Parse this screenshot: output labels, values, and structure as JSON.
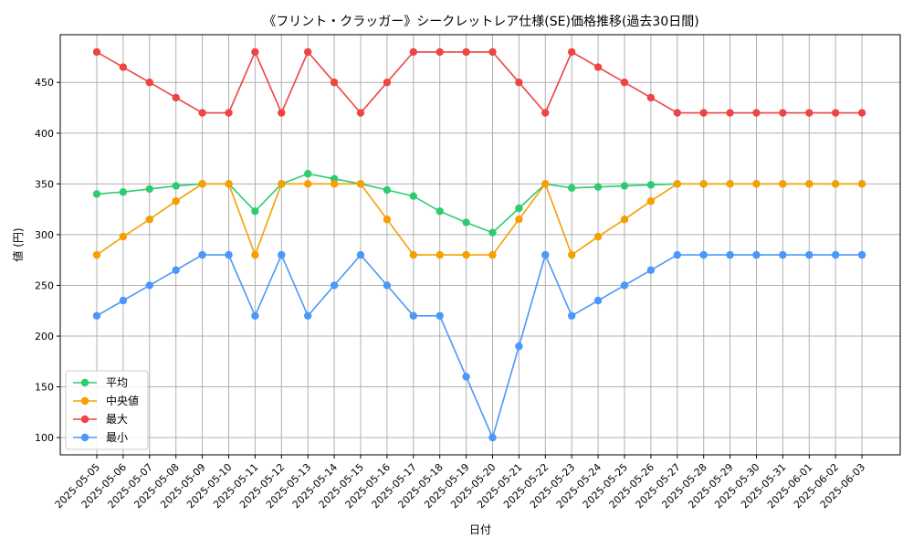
{
  "chart_data": {
    "type": "line",
    "title": "《フリント・クラッガー》シークレットレア仕様(SE)価格推移(過去30日間)",
    "xlabel": "日付",
    "ylabel": "値 (円)",
    "ylim": [
      83,
      497
    ],
    "yticks": [
      100,
      150,
      200,
      250,
      300,
      350,
      400,
      450
    ],
    "grid": true,
    "legend": "lower-left",
    "categories": [
      "2025-05-05",
      "2025-05-06",
      "2025-05-07",
      "2025-05-08",
      "2025-05-09",
      "2025-05-10",
      "2025-05-11",
      "2025-05-12",
      "2025-05-13",
      "2025-05-14",
      "2025-05-15",
      "2025-05-16",
      "2025-05-17",
      "2025-05-18",
      "2025-05-19",
      "2025-05-20",
      "2025-05-21",
      "2025-05-22",
      "2025-05-23",
      "2025-05-24",
      "2025-05-25",
      "2025-05-26",
      "2025-05-27",
      "2025-05-28",
      "2025-05-29",
      "2025-05-30",
      "2025-05-31",
      "2025-06-01",
      "2025-06-02",
      "2025-06-03"
    ],
    "series": [
      {
        "name": "平均",
        "color": "#2ecc71",
        "values": [
          340,
          342,
          345,
          348,
          350,
          350,
          323,
          350,
          360,
          355,
          350,
          344,
          338,
          323,
          312,
          302,
          326,
          350,
          346,
          347,
          348,
          349,
          350,
          350,
          350,
          350,
          350,
          350,
          350,
          350
        ]
      },
      {
        "name": "中央値",
        "color": "#f5a000",
        "values": [
          280,
          298,
          315,
          333,
          350,
          350,
          280,
          350,
          350,
          350,
          350,
          315,
          280,
          280,
          280,
          280,
          315,
          350,
          280,
          298,
          315,
          333,
          350,
          350,
          350,
          350,
          350,
          350,
          350,
          350
        ]
      },
      {
        "name": "最大",
        "color": "#ee4444",
        "values": [
          480,
          465,
          450,
          435,
          420,
          420,
          480,
          420,
          480,
          450,
          420,
          450,
          480,
          480,
          480,
          480,
          450,
          420,
          480,
          465,
          450,
          435,
          420,
          420,
          420,
          420,
          420,
          420,
          420,
          420
        ]
      },
      {
        "name": "最小",
        "color": "#4a98f7",
        "values": [
          220,
          235,
          250,
          265,
          280,
          280,
          220,
          280,
          220,
          250,
          280,
          250,
          220,
          220,
          160,
          100,
          190,
          280,
          220,
          235,
          250,
          265,
          280,
          280,
          280,
          280,
          280,
          280,
          280,
          280
        ]
      }
    ]
  }
}
